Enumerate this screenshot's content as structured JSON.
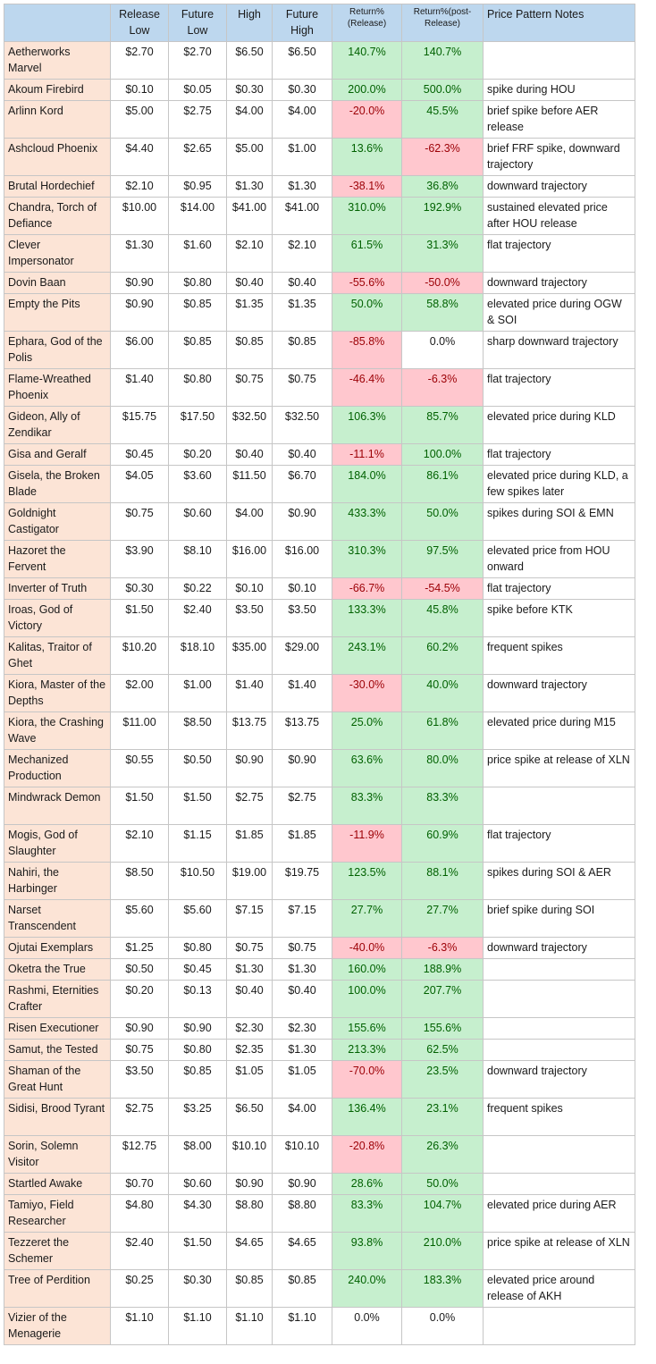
{
  "colors": {
    "header_bg": "#bdd7ee",
    "name_bg": "#fce4d6",
    "positive_bg": "#c6efce",
    "positive_text": "#006100",
    "negative_bg": "#ffc7ce",
    "negative_text": "#9c0006"
  },
  "headers": [
    "",
    "Release Low",
    "Future Low",
    "High",
    "Future High",
    "Return% (Release)",
    "Return%(post-Release)",
    "Price Pattern Notes"
  ],
  "rows": [
    {
      "name": "Aetherworks Marvel",
      "release_low": "$2.70",
      "future_low": "$2.70",
      "high": "$6.50",
      "future_high": "$6.50",
      "return_release": "140.7%",
      "return_post": "140.7%",
      "notes": "",
      "rs": "pos",
      "ps": "pos"
    },
    {
      "name": "Akoum Firebird",
      "release_low": "$0.10",
      "future_low": "$0.05",
      "high": "$0.30",
      "future_high": "$0.30",
      "return_release": "200.0%",
      "return_post": "500.0%",
      "notes": "spike during HOU",
      "rs": "pos",
      "ps": "pos"
    },
    {
      "name": "Arlinn Kord",
      "release_low": "$5.00",
      "future_low": "$2.75",
      "high": "$4.00",
      "future_high": "$4.00",
      "return_release": "-20.0%",
      "return_post": "45.5%",
      "notes": "brief spike before AER release",
      "rs": "neg",
      "ps": "pos"
    },
    {
      "name": "Ashcloud Phoenix",
      "release_low": "$4.40",
      "future_low": "$2.65",
      "high": "$5.00",
      "future_high": "$1.00",
      "return_release": "13.6%",
      "return_post": "-62.3%",
      "notes": "brief FRF spike, downward trajectory",
      "rs": "pos",
      "ps": "neg"
    },
    {
      "name": "Brutal Hordechief",
      "release_low": "$2.10",
      "future_low": "$0.95",
      "high": "$1.30",
      "future_high": "$1.30",
      "return_release": "-38.1%",
      "return_post": "36.8%",
      "notes": "downward trajectory",
      "rs": "neg",
      "ps": "pos"
    },
    {
      "name": "Chandra, Torch of Defiance",
      "release_low": "$10.00",
      "future_low": "$14.00",
      "high": "$41.00",
      "future_high": "$41.00",
      "return_release": "310.0%",
      "return_post": "192.9%",
      "notes": "sustained elevated price after HOU release",
      "rs": "pos",
      "ps": "pos"
    },
    {
      "name": "Clever Impersonator",
      "release_low": "$1.30",
      "future_low": "$1.60",
      "high": "$2.10",
      "future_high": "$2.10",
      "return_release": "61.5%",
      "return_post": "31.3%",
      "notes": "flat trajectory",
      "rs": "pos",
      "ps": "pos"
    },
    {
      "name": "Dovin Baan",
      "release_low": "$0.90",
      "future_low": "$0.80",
      "high": "$0.40",
      "future_high": "$0.40",
      "return_release": "-55.6%",
      "return_post": "-50.0%",
      "notes": "downward trajectory",
      "rs": "neg",
      "ps": "neg"
    },
    {
      "name": "Empty the Pits",
      "release_low": "$0.90",
      "future_low": "$0.85",
      "high": "$1.35",
      "future_high": "$1.35",
      "return_release": "50.0%",
      "return_post": "58.8%",
      "notes": "elevated price during OGW & SOI",
      "rs": "pos",
      "ps": "pos"
    },
    {
      "name": "Ephara, God of the Polis",
      "release_low": "$6.00",
      "future_low": "$0.85",
      "high": "$0.85",
      "future_high": "$0.85",
      "return_release": "-85.8%",
      "return_post": "0.0%",
      "notes": "sharp downward trajectory",
      "rs": "neg",
      "ps": "zero"
    },
    {
      "name": "Flame-Wreathed Phoenix",
      "release_low": "$1.40",
      "future_low": "$0.80",
      "high": "$0.75",
      "future_high": "$0.75",
      "return_release": "-46.4%",
      "return_post": "-6.3%",
      "notes": "flat trajectory",
      "rs": "neg",
      "ps": "neg"
    },
    {
      "name": "Gideon, Ally of Zendikar",
      "release_low": "$15.75",
      "future_low": "$17.50",
      "high": "$32.50",
      "future_high": "$32.50",
      "return_release": "106.3%",
      "return_post": "85.7%",
      "notes": "elevated price during KLD",
      "rs": "pos",
      "ps": "pos"
    },
    {
      "name": "Gisa and Geralf",
      "release_low": "$0.45",
      "future_low": "$0.20",
      "high": "$0.40",
      "future_high": "$0.40",
      "return_release": "-11.1%",
      "return_post": "100.0%",
      "notes": "flat trajectory",
      "rs": "neg",
      "ps": "pos"
    },
    {
      "name": "Gisela, the Broken Blade",
      "release_low": "$4.05",
      "future_low": "$3.60",
      "high": "$11.50",
      "future_high": "$6.70",
      "return_release": "184.0%",
      "return_post": "86.1%",
      "notes": "elevated price during KLD, a few spikes later",
      "rs": "pos",
      "ps": "pos"
    },
    {
      "name": "Goldnight Castigator",
      "release_low": "$0.75",
      "future_low": "$0.60",
      "high": "$4.00",
      "future_high": "$0.90",
      "return_release": "433.3%",
      "return_post": "50.0%",
      "notes": "spikes during SOI & EMN",
      "rs": "pos",
      "ps": "pos"
    },
    {
      "name": "Hazoret the Fervent",
      "release_low": "$3.90",
      "future_low": "$8.10",
      "high": "$16.00",
      "future_high": "$16.00",
      "return_release": "310.3%",
      "return_post": "97.5%",
      "notes": "elevated price from HOU onward",
      "rs": "pos",
      "ps": "pos"
    },
    {
      "name": "Inverter of Truth",
      "release_low": "$0.30",
      "future_low": "$0.22",
      "high": "$0.10",
      "future_high": "$0.10",
      "return_release": "-66.7%",
      "return_post": "-54.5%",
      "notes": "flat trajectory",
      "rs": "neg",
      "ps": "neg"
    },
    {
      "name": "Iroas, God of Victory",
      "release_low": "$1.50",
      "future_low": "$2.40",
      "high": "$3.50",
      "future_high": "$3.50",
      "return_release": "133.3%",
      "return_post": "45.8%",
      "notes": "spike before KTK",
      "rs": "pos",
      "ps": "pos"
    },
    {
      "name": "Kalitas, Traitor of Ghet",
      "release_low": "$10.20",
      "future_low": "$18.10",
      "high": "$35.00",
      "future_high": "$29.00",
      "return_release": "243.1%",
      "return_post": "60.2%",
      "notes": "frequent spikes",
      "rs": "pos",
      "ps": "pos"
    },
    {
      "name": "Kiora, Master of the Depths",
      "release_low": "$2.00",
      "future_low": "$1.00",
      "high": "$1.40",
      "future_high": "$1.40",
      "return_release": "-30.0%",
      "return_post": "40.0%",
      "notes": "downward trajectory",
      "rs": "neg",
      "ps": "pos"
    },
    {
      "name": "Kiora, the Crashing Wave",
      "release_low": "$11.00",
      "future_low": "$8.50",
      "high": "$13.75",
      "future_high": "$13.75",
      "return_release": "25.0%",
      "return_post": "61.8%",
      "notes": "elevated price during M15",
      "rs": "pos",
      "ps": "pos"
    },
    {
      "name": "Mechanized Production",
      "release_low": "$0.55",
      "future_low": "$0.50",
      "high": "$0.90",
      "future_high": "$0.90",
      "return_release": "63.6%",
      "return_post": "80.0%",
      "notes": "price spike at release of XLN",
      "rs": "pos",
      "ps": "pos"
    },
    {
      "name": "Mindwrack Demon",
      "release_low": "$1.50",
      "future_low": "$1.50",
      "high": "$2.75",
      "future_high": "$2.75",
      "return_release": "83.3%",
      "return_post": "83.3%",
      "notes": "",
      "rs": "pos",
      "ps": "pos"
    },
    {
      "name": "Mogis, God of Slaughter",
      "release_low": "$2.10",
      "future_low": "$1.15",
      "high": "$1.85",
      "future_high": "$1.85",
      "return_release": "-11.9%",
      "return_post": "60.9%",
      "notes": "flat trajectory",
      "rs": "neg",
      "ps": "pos"
    },
    {
      "name": "Nahiri, the Harbinger",
      "release_low": "$8.50",
      "future_low": "$10.50",
      "high": "$19.00",
      "future_high": "$19.75",
      "return_release": "123.5%",
      "return_post": "88.1%",
      "notes": "spikes during SOI & AER",
      "rs": "pos",
      "ps": "pos"
    },
    {
      "name": "Narset Transcendent",
      "release_low": "$5.60",
      "future_low": "$5.60",
      "high": "$7.15",
      "future_high": "$7.15",
      "return_release": "27.7%",
      "return_post": "27.7%",
      "notes": "brief spike during SOI",
      "rs": "pos",
      "ps": "pos"
    },
    {
      "name": "Ojutai Exemplars",
      "release_low": "$1.25",
      "future_low": "$0.80",
      "high": "$0.75",
      "future_high": "$0.75",
      "return_release": "-40.0%",
      "return_post": "-6.3%",
      "notes": "downward trajectory",
      "rs": "neg",
      "ps": "neg"
    },
    {
      "name": "Oketra the True",
      "release_low": "$0.50",
      "future_low": "$0.45",
      "high": "$1.30",
      "future_high": "$1.30",
      "return_release": "160.0%",
      "return_post": "188.9%",
      "notes": "",
      "rs": "pos",
      "ps": "pos"
    },
    {
      "name": "Rashmi, Eternities Crafter",
      "release_low": "$0.20",
      "future_low": "$0.13",
      "high": "$0.40",
      "future_high": "$0.40",
      "return_release": "100.0%",
      "return_post": "207.7%",
      "notes": "",
      "rs": "pos",
      "ps": "pos"
    },
    {
      "name": "Risen Executioner",
      "release_low": "$0.90",
      "future_low": "$0.90",
      "high": "$2.30",
      "future_high": "$2.30",
      "return_release": "155.6%",
      "return_post": "155.6%",
      "notes": "",
      "rs": "pos",
      "ps": "pos"
    },
    {
      "name": "Samut, the Tested",
      "release_low": "$0.75",
      "future_low": "$0.80",
      "high": "$2.35",
      "future_high": "$1.30",
      "return_release": "213.3%",
      "return_post": "62.5%",
      "notes": "",
      "rs": "pos",
      "ps": "pos"
    },
    {
      "name": "Shaman of the Great Hunt",
      "release_low": "$3.50",
      "future_low": "$0.85",
      "high": "$1.05",
      "future_high": "$1.05",
      "return_release": "-70.0%",
      "return_post": "23.5%",
      "notes": "downward trajectory",
      "rs": "neg",
      "ps": "pos"
    },
    {
      "name": "Sidisi, Brood Tyrant",
      "release_low": "$2.75",
      "future_low": "$3.25",
      "high": "$6.50",
      "future_high": "$4.00",
      "return_release": "136.4%",
      "return_post": "23.1%",
      "notes": "frequent spikes",
      "rs": "pos",
      "ps": "pos"
    },
    {
      "name": "Sorin, Solemn Visitor",
      "release_low": "$12.75",
      "future_low": "$8.00",
      "high": "$10.10",
      "future_high": "$10.10",
      "return_release": "-20.8%",
      "return_post": "26.3%",
      "notes": "",
      "rs": "neg",
      "ps": "pos"
    },
    {
      "name": "Startled Awake",
      "release_low": "$0.70",
      "future_low": "$0.60",
      "high": "$0.90",
      "future_high": "$0.90",
      "return_release": "28.6%",
      "return_post": "50.0%",
      "notes": "",
      "rs": "pos",
      "ps": "pos"
    },
    {
      "name": "Tamiyo, Field Researcher",
      "release_low": "$4.80",
      "future_low": "$4.30",
      "high": "$8.80",
      "future_high": "$8.80",
      "return_release": "83.3%",
      "return_post": "104.7%",
      "notes": "elevated price during AER",
      "rs": "pos",
      "ps": "pos"
    },
    {
      "name": "Tezzeret the Schemer",
      "release_low": "$2.40",
      "future_low": "$1.50",
      "high": "$4.65",
      "future_high": "$4.65",
      "return_release": "93.8%",
      "return_post": "210.0%",
      "notes": "price spike at release of XLN",
      "rs": "pos",
      "ps": "pos"
    },
    {
      "name": "Tree of Perdition",
      "release_low": "$0.25",
      "future_low": "$0.30",
      "high": "$0.85",
      "future_high": "$0.85",
      "return_release": "240.0%",
      "return_post": "183.3%",
      "notes": "elevated price around release of AKH",
      "rs": "pos",
      "ps": "pos"
    },
    {
      "name": "Vizier of the Menagerie",
      "release_low": "$1.10",
      "future_low": "$1.10",
      "high": "$1.10",
      "future_high": "$1.10",
      "return_release": "0.0%",
      "return_post": "0.0%",
      "notes": "",
      "rs": "zero",
      "ps": "zero"
    }
  ]
}
